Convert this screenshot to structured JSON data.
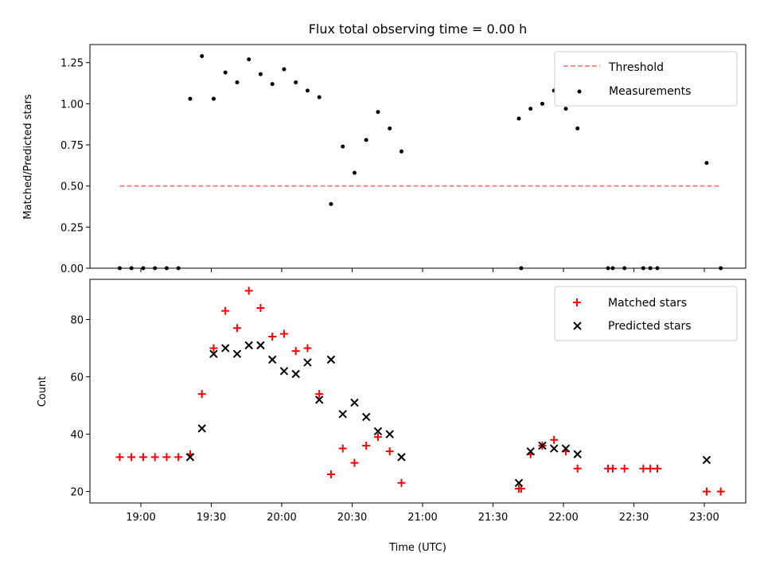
{
  "chart_data": [
    {
      "type": "scatter",
      "title": "Flux total observing time = 0.00 h",
      "xlabel": "",
      "ylabel": "Matched/Predicted stars",
      "ylim": [
        0,
        1.36
      ],
      "yticks": [
        "0.00",
        "0.25",
        "0.50",
        "0.75",
        "1.00",
        "1.25"
      ],
      "legend_position": "top-right",
      "threshold": {
        "name": "Threshold",
        "value": 0.5,
        "x_start": "18:51",
        "x_end": "23:07",
        "color": "#ff7f7f",
        "style": "dashed"
      },
      "series": [
        {
          "name": "Measurements",
          "color": "#000000",
          "marker": "dot",
          "points": [
            [
              "18:51",
              0
            ],
            [
              "18:56",
              0
            ],
            [
              "19:01",
              0
            ],
            [
              "19:06",
              0
            ],
            [
              "19:11",
              0
            ],
            [
              "19:16",
              0
            ],
            [
              "19:21",
              1.03
            ],
            [
              "19:26",
              1.29
            ],
            [
              "19:31",
              1.03
            ],
            [
              "19:36",
              1.19
            ],
            [
              "19:41",
              1.13
            ],
            [
              "19:46",
              1.27
            ],
            [
              "19:51",
              1.18
            ],
            [
              "19:56",
              1.12
            ],
            [
              "20:01",
              1.21
            ],
            [
              "20:06",
              1.13
            ],
            [
              "20:11",
              1.08
            ],
            [
              "20:16",
              1.04
            ],
            [
              "20:21",
              0.39
            ],
            [
              "20:26",
              0.74
            ],
            [
              "20:31",
              0.58
            ],
            [
              "20:36",
              0.78
            ],
            [
              "20:41",
              0.95
            ],
            [
              "20:46",
              0.85
            ],
            [
              "20:51",
              0.71
            ],
            [
              "21:41",
              0.91
            ],
            [
              "21:42",
              0
            ],
            [
              "21:46",
              0.97
            ],
            [
              "21:51",
              1.0
            ],
            [
              "21:56",
              1.08
            ],
            [
              "22:01",
              0.97
            ],
            [
              "22:06",
              0.85
            ],
            [
              "22:19",
              0
            ],
            [
              "22:21",
              0
            ],
            [
              "22:26",
              0
            ],
            [
              "22:34",
              0
            ],
            [
              "22:37",
              0
            ],
            [
              "22:40",
              0
            ],
            [
              "23:01",
              0.64
            ],
            [
              "23:07",
              0
            ]
          ]
        }
      ]
    },
    {
      "type": "scatter",
      "title": "",
      "xlabel": "Time (UTC)",
      "ylabel": "Count",
      "ylim": [
        16,
        94
      ],
      "yticks": [
        "20",
        "40",
        "60",
        "80"
      ],
      "xticks": [
        "19:00",
        "19:30",
        "20:00",
        "20:30",
        "21:00",
        "21:30",
        "22:00",
        "22:30",
        "23:00"
      ],
      "legend_position": "top-right",
      "series": [
        {
          "name": "Matched stars",
          "color": "#ff0000",
          "marker": "plus",
          "points": [
            [
              "18:51",
              32
            ],
            [
              "18:56",
              32
            ],
            [
              "19:01",
              32
            ],
            [
              "19:06",
              32
            ],
            [
              "19:11",
              32
            ],
            [
              "19:16",
              32
            ],
            [
              "19:21",
              33
            ],
            [
              "19:26",
              54
            ],
            [
              "19:31",
              70
            ],
            [
              "19:36",
              83
            ],
            [
              "19:41",
              77
            ],
            [
              "19:46",
              90
            ],
            [
              "19:51",
              84
            ],
            [
              "19:56",
              74
            ],
            [
              "20:01",
              75
            ],
            [
              "20:06",
              69
            ],
            [
              "20:11",
              70
            ],
            [
              "20:16",
              54
            ],
            [
              "20:21",
              26
            ],
            [
              "20:26",
              35
            ],
            [
              "20:31",
              30
            ],
            [
              "20:36",
              36
            ],
            [
              "20:41",
              39
            ],
            [
              "20:46",
              34
            ],
            [
              "20:51",
              23
            ],
            [
              "21:41",
              21
            ],
            [
              "21:42",
              21
            ],
            [
              "21:46",
              33
            ],
            [
              "21:51",
              36
            ],
            [
              "21:56",
              38
            ],
            [
              "22:01",
              34
            ],
            [
              "22:06",
              28
            ],
            [
              "22:19",
              28
            ],
            [
              "22:21",
              28
            ],
            [
              "22:26",
              28
            ],
            [
              "22:34",
              28
            ],
            [
              "22:37",
              28
            ],
            [
              "22:40",
              28
            ],
            [
              "23:01",
              20
            ],
            [
              "23:07",
              20
            ]
          ]
        },
        {
          "name": "Predicted stars",
          "color": "#000000",
          "marker": "x",
          "points": [
            [
              "19:21",
              32
            ],
            [
              "19:26",
              42
            ],
            [
              "19:31",
              68
            ],
            [
              "19:36",
              70
            ],
            [
              "19:41",
              68
            ],
            [
              "19:46",
              71
            ],
            [
              "19:51",
              71
            ],
            [
              "19:56",
              66
            ],
            [
              "20:01",
              62
            ],
            [
              "20:06",
              61
            ],
            [
              "20:11",
              65
            ],
            [
              "20:16",
              52
            ],
            [
              "20:21",
              66
            ],
            [
              "20:26",
              47
            ],
            [
              "20:31",
              51
            ],
            [
              "20:36",
              46
            ],
            [
              "20:41",
              41
            ],
            [
              "20:46",
              40
            ],
            [
              "20:51",
              32
            ],
            [
              "21:41",
              23
            ],
            [
              "21:46",
              34
            ],
            [
              "21:51",
              36
            ],
            [
              "21:56",
              35
            ],
            [
              "22:01",
              35
            ],
            [
              "22:06",
              33
            ],
            [
              "23:01",
              31
            ]
          ]
        }
      ]
    }
  ]
}
